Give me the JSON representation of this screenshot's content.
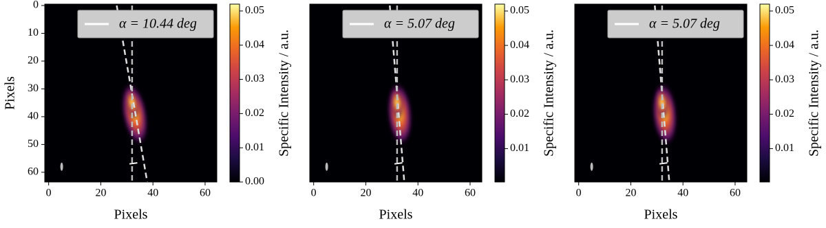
{
  "chart_data": [
    {
      "type": "heatmap",
      "x_label": "Pixels",
      "y_label": "Pixels",
      "colorbar_label": "Specific Intensity / a.u.",
      "xlim": [
        -1.5,
        64.5
      ],
      "ylim": [
        -0.5,
        63.5
      ],
      "y_inverted": true,
      "xticks": [
        0,
        20,
        40,
        60
      ],
      "yticks": [
        0,
        10,
        20,
        30,
        40,
        50,
        60
      ],
      "clim": [
        0,
        0.052
      ],
      "cticks": [
        {
          "value": 0,
          "label": "0.00"
        },
        0.01,
        0.02,
        0.03,
        0.04,
        0.05
      ],
      "series": [
        {
          "name": "α = 10.44 deg",
          "color": "#dddddd",
          "x": [
            26.1,
            37.9
          ],
          "y": [
            0,
            64
          ]
        },
        {
          "color": "#bbbbbb",
          "x": [
            32,
            32
          ],
          "y": [
            0,
            64
          ]
        }
      ]
    },
    {
      "type": "heatmap",
      "x_label": "Pixels",
      "colorbar_label": "Specific Intensity / a.u.",
      "xlim": [
        -1.5,
        64.5
      ],
      "ylim": [
        -0.5,
        63.5
      ],
      "y_inverted": true,
      "xticks": [
        0,
        20,
        40,
        60
      ],
      "clim": [
        0.0003,
        0.052
      ],
      "cticks": [
        0.01,
        0.02,
        0.03,
        0.04,
        0.05
      ],
      "series": [
        {
          "name": "α = 5.07 deg",
          "color": "#dddddd",
          "x": [
            29.2,
            34.8
          ],
          "y": [
            0,
            64
          ]
        },
        {
          "color": "#bbbbbb",
          "x": [
            32,
            32
          ],
          "y": [
            0,
            64
          ]
        }
      ]
    },
    {
      "type": "heatmap",
      "x_label": "Pixels",
      "colorbar_label": "Specific Intensity / a.u.",
      "xlim": [
        -1.5,
        64.5
      ],
      "ylim": [
        -0.5,
        63.5
      ],
      "y_inverted": true,
      "xticks": [
        0,
        20,
        40,
        60
      ],
      "clim": [
        0.0003,
        0.052
      ],
      "cticks": [
        0.01,
        0.02,
        0.03,
        0.04,
        0.05
      ],
      "series": [
        {
          "name": "α = 5.07 deg",
          "color": "#dddddd",
          "x": [
            29.2,
            34.8
          ],
          "y": [
            0,
            64
          ]
        },
        {
          "color": "#bbbbbb",
          "x": [
            32,
            32
          ],
          "y": [
            0,
            64
          ]
        }
      ]
    }
  ]
}
